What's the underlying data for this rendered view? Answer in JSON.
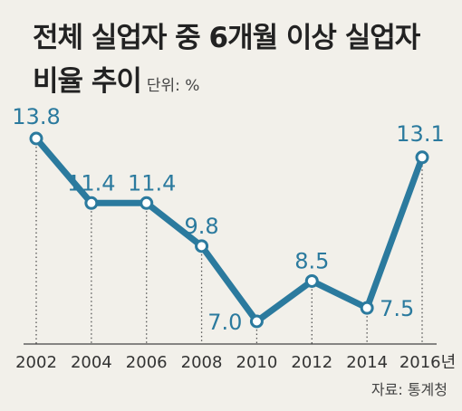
{
  "title": {
    "line1": "전체 실업자 중 6개월 이상 실업자",
    "line2": "비율 추이",
    "unit": "단위: %"
  },
  "source": "자료: 통계청",
  "colors": {
    "line": "#2b7a9e",
    "label": "#2b7a9e",
    "background": "#f2f0ea",
    "axis": "#444444"
  },
  "chart_data": {
    "type": "line",
    "title": "전체 실업자 중 6개월 이상 실업자 비율 추이",
    "unit": "%",
    "categories": [
      "2002",
      "2004",
      "2006",
      "2008",
      "2010",
      "2012",
      "2014",
      "2016년"
    ],
    "values": [
      13.8,
      11.4,
      11.4,
      9.8,
      7.0,
      8.5,
      7.5,
      13.1
    ],
    "value_labels": [
      "13.8",
      "11.4",
      "11.4",
      "9.8",
      "7.0",
      "8.5",
      "7.5",
      "13.1"
    ],
    "grid": false,
    "legend": "none"
  }
}
